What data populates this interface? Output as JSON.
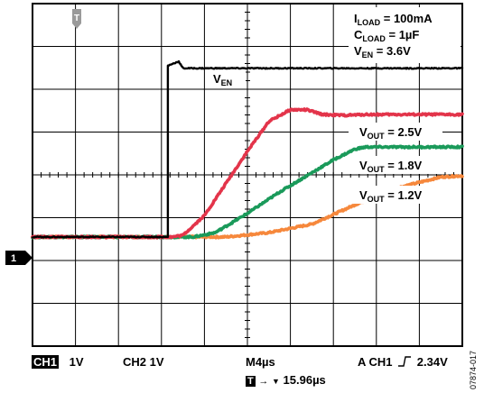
{
  "chart_data": {
    "type": "line",
    "title": "",
    "xlabel": "",
    "ylabel": "",
    "grid": true,
    "x_divisions": 10,
    "y_divisions": 8,
    "x_unit": "µs",
    "x_per_div": 4,
    "xlim": [
      -4,
      36
    ],
    "conditions": {
      "iload": {
        "main": "I",
        "sub": "LOAD",
        "rest": " = 100mA"
      },
      "cload": {
        "main": "C",
        "sub": "LOAD",
        "rest": " = 1µF"
      },
      "ven": {
        "main": "V",
        "sub": "EN",
        "rest": " = 3.6V"
      }
    },
    "series_labels": {
      "ven": {
        "main": "V",
        "sub": "EN",
        "rest": ""
      },
      "v25": {
        "main": "V",
        "sub": "OUT",
        "rest": " = 2.5V"
      },
      "v18": {
        "main": "V",
        "sub": "OUT",
        "rest": " = 1.8V"
      },
      "v12": {
        "main": "V",
        "sub": "OUT",
        "rest": " = 1.2V"
      }
    },
    "series": [
      {
        "id": "ven",
        "color": "#000000",
        "width": 2.4,
        "noise": 0.012,
        "x": [
          -4,
          8.6,
          8.6,
          9.6,
          10.0,
          36
        ],
        "y": [
          0.0,
          0.0,
          4.0,
          4.1,
          3.94,
          3.94
        ]
      },
      {
        "id": "v25",
        "color": "#e3344a",
        "width": 3.6,
        "noise": 0.02,
        "x": [
          -4,
          9,
          10,
          12,
          14,
          16,
          18,
          20,
          21.5,
          23,
          25,
          27,
          36
        ],
        "y": [
          0.0,
          0.0,
          0.04,
          0.5,
          1.25,
          2.0,
          2.7,
          2.97,
          2.97,
          2.86,
          2.84,
          2.86,
          2.86
        ]
      },
      {
        "id": "v18",
        "color": "#1a9a5a",
        "width": 3.6,
        "noise": 0.02,
        "x": [
          -4,
          11,
          13,
          16,
          19,
          22,
          24,
          26,
          27,
          36
        ],
        "y": [
          0.0,
          0.0,
          0.1,
          0.55,
          1.05,
          1.5,
          1.8,
          2.05,
          2.1,
          2.1
        ]
      },
      {
        "id": "v12",
        "color": "#f6883c",
        "width": 3.6,
        "noise": 0.02,
        "x": [
          -4,
          14,
          18,
          22,
          26,
          30,
          34,
          36
        ],
        "y": [
          0.0,
          0.0,
          0.1,
          0.3,
          0.75,
          1.15,
          1.4,
          1.43
        ]
      }
    ],
    "markers": {
      "trigger": "T",
      "ch1_ground": "1"
    }
  },
  "status": {
    "ch1": "CH1",
    "ch1_scale": "1V",
    "ch2_scale": "CH2  1V",
    "timebase": "M4µs",
    "trigger": "A  CH1",
    "trigger_level": "2.34V",
    "trig_pos_icon": "T",
    "trig_pos": "15.96µs"
  },
  "figure_id": "07874-017"
}
